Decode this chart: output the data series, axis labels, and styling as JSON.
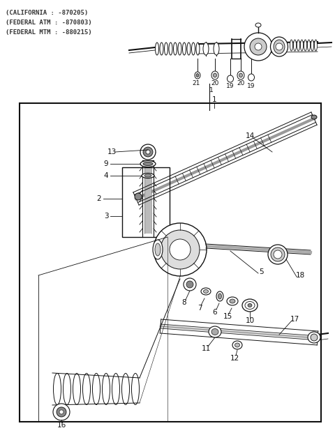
{
  "background_color": "#ffffff",
  "header_lines": [
    "(CALIFORNIA : -870205)",
    "(FEDERAL ATM : -870803)",
    "(FEDERAL MTM : -880215)"
  ],
  "fig_width": 4.8,
  "fig_height": 6.24,
  "dpi": 100
}
